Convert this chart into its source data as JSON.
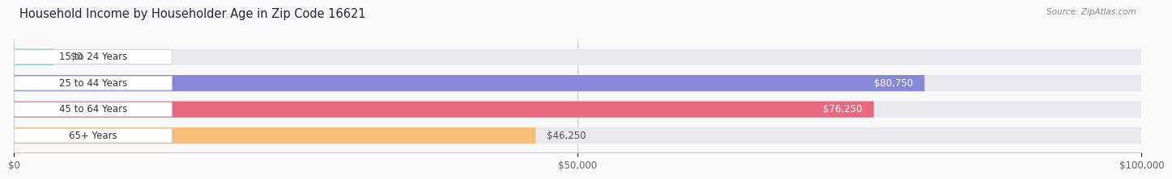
{
  "title": "Household Income by Householder Age in Zip Code 16621",
  "source": "Source: ZipAtlas.com",
  "categories": [
    "15 to 24 Years",
    "25 to 44 Years",
    "45 to 64 Years",
    "65+ Years"
  ],
  "values": [
    0,
    80750,
    76250,
    46250
  ],
  "bar_colors": [
    "#72cec9",
    "#8888d8",
    "#e86880",
    "#f5bf7a"
  ],
  "bar_bg_color": "#e8e8ee",
  "value_labels": [
    "$0",
    "$80,750",
    "$76,250",
    "$46,250"
  ],
  "xlim": [
    0,
    100000
  ],
  "xticks": [
    0,
    50000,
    100000
  ],
  "xtick_labels": [
    "$0",
    "$50,000",
    "$100,000"
  ],
  "title_fontsize": 10.5,
  "label_fontsize": 8.5,
  "value_fontsize": 8.5,
  "bar_height": 0.62,
  "fig_width": 14.06,
  "fig_height": 2.33,
  "background_color": "#f9f9f9",
  "title_color": "#222244",
  "source_color": "#888888",
  "value_color_inside": "#ffffff",
  "value_color_outside": "#555555",
  "label_pill_color": "#ffffff",
  "label_text_color": "#333333"
}
